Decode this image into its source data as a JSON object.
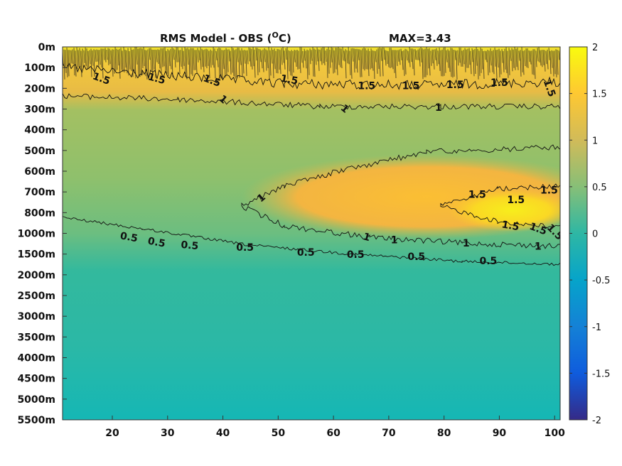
{
  "chart_data": {
    "type": "heatmap",
    "title": "RMS Model - OBS (",
    "title_superscript": "O",
    "title_unit_suffix": "C)",
    "max_label": "MAX=3.43",
    "xlabel": "",
    "ylabel": "",
    "xlim": [
      11,
      101
    ],
    "x_ticks": [
      20,
      30,
      40,
      50,
      60,
      70,
      80,
      90,
      100
    ],
    "y_ticks": [
      "0m",
      "100m",
      "200m",
      "300m",
      "400m",
      "500m",
      "600m",
      "700m",
      "800m",
      "1000m",
      "1500m",
      "2000m",
      "2500m",
      "3000m",
      "3500m",
      "4000m",
      "4500m",
      "5000m",
      "5500m"
    ],
    "colorbar": {
      "range": [
        -2,
        2
      ],
      "ticks": [
        "2",
        "1.5",
        "1",
        "0.5",
        "0",
        "-0.5",
        "-1",
        "-1.5",
        "-2"
      ],
      "colormap": "parula"
    },
    "colormap_stops": [
      "#352a87",
      "#0f5cdd",
      "#1481d6",
      "#06a4ca",
      "#2eb7a4",
      "#87bf77",
      "#d1bb59",
      "#fec832",
      "#f9fb0e"
    ],
    "background_color": "#7fbf7a",
    "deep_color": "#2ab9a5",
    "warm_color": "#f5b43b",
    "surface_color": "#f2e02a",
    "contour_levels": [
      0.5,
      1,
      1.5
    ],
    "contour_labels": [
      {
        "text": "1.5",
        "x": 18,
        "y_index": 1.55,
        "rot": 20
      },
      {
        "text": "1.5",
        "x": 28,
        "y_index": 1.55,
        "rot": 15
      },
      {
        "text": "1.5",
        "x": 38,
        "y_index": 1.65,
        "rot": 20
      },
      {
        "text": "1.5",
        "x": 52,
        "y_index": 1.6,
        "rot": 10
      },
      {
        "text": "1.5",
        "x": 66,
        "y_index": 1.9,
        "rot": 0
      },
      {
        "text": "1.5",
        "x": 74,
        "y_index": 1.9,
        "rot": 0
      },
      {
        "text": "1.5",
        "x": 82,
        "y_index": 1.85,
        "rot": 0
      },
      {
        "text": "1.5",
        "x": 90,
        "y_index": 1.75,
        "rot": 0
      },
      {
        "text": "1.5",
        "x": 99,
        "y_index": 2.0,
        "rot": 70
      },
      {
        "text": "1",
        "x": 40,
        "y_index": 2.55,
        "rot": 40
      },
      {
        "text": "1",
        "x": 62,
        "y_index": 3.0,
        "rot": 40
      },
      {
        "text": "1",
        "x": 79,
        "y_index": 2.95,
        "rot": 0
      },
      {
        "text": "0.5",
        "x": 23,
        "y_index": 9.2,
        "rot": 10
      },
      {
        "text": "0.5",
        "x": 28,
        "y_index": 9.45,
        "rot": 10
      },
      {
        "text": "0.5",
        "x": 34,
        "y_index": 9.6,
        "rot": 5
      },
      {
        "text": "0.5",
        "x": 44,
        "y_index": 9.7,
        "rot": 0
      },
      {
        "text": "0.5",
        "x": 55,
        "y_index": 9.95,
        "rot": 0
      },
      {
        "text": "0.5",
        "x": 64,
        "y_index": 10.05,
        "rot": 0
      },
      {
        "text": "0.5",
        "x": 75,
        "y_index": 10.15,
        "rot": 0
      },
      {
        "text": "0.5",
        "x": 88,
        "y_index": 10.35,
        "rot": 0
      },
      {
        "text": "1",
        "x": 71,
        "y_index": 9.35,
        "rot": 0
      },
      {
        "text": "1",
        "x": 84,
        "y_index": 9.5,
        "rot": 0
      },
      {
        "text": "1",
        "x": 97,
        "y_index": 9.65,
        "rot": 0
      },
      {
        "text": "1.5",
        "x": 86,
        "y_index": 7.15,
        "rot": 0
      },
      {
        "text": "1.5",
        "x": 93,
        "y_index": 7.4,
        "rot": 0
      },
      {
        "text": "1.5",
        "x": 99,
        "y_index": 6.95,
        "rot": 0
      },
      {
        "text": "1.5",
        "x": 92,
        "y_index": 8.65,
        "rot": 10
      },
      {
        "text": "1.5",
        "x": 97,
        "y_index": 8.8,
        "rot": 20
      },
      {
        "text": "1.5",
        "x": 100,
        "y_index": 8.95,
        "rot": 45
      },
      {
        "text": "1",
        "x": 47,
        "y_index": 7.3,
        "rot": -40
      },
      {
        "text": "1",
        "x": 66,
        "y_index": 9.2,
        "rot": 15
      }
    ]
  }
}
